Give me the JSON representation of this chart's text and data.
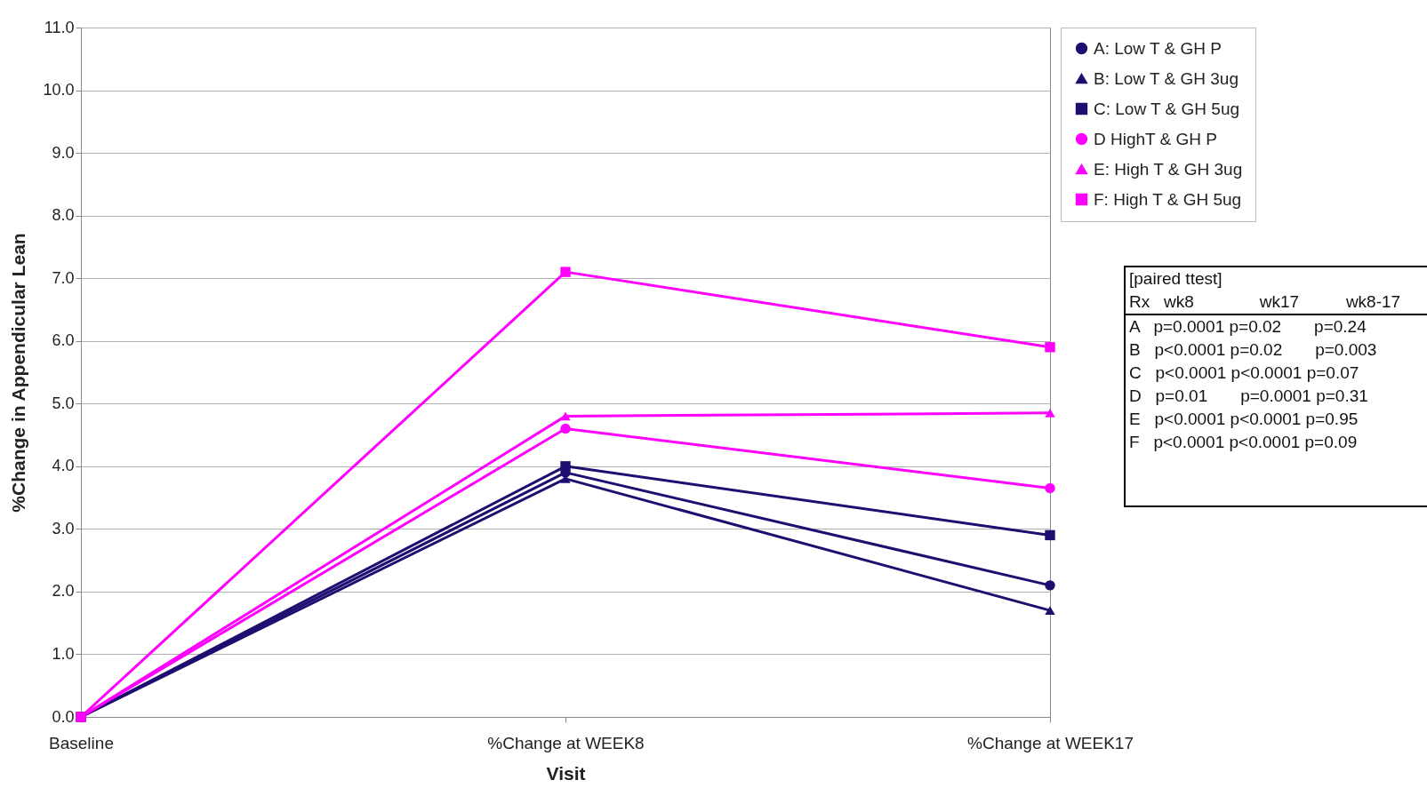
{
  "chart_data": {
    "type": "line",
    "xlabel": "Visit",
    "ylabel": "%Change in Appendicular Lean",
    "categories": [
      "Baseline",
      "%Change at WEEK8",
      "%Change at WEEK17"
    ],
    "series": [
      {
        "name": "A: Low T & GH P",
        "color": "#1c0f70",
        "marker": "circle",
        "values": [
          0,
          3.9,
          2.1
        ]
      },
      {
        "name": "B: Low T & GH 3ug",
        "color": "#1c0f70",
        "marker": "triangle",
        "values": [
          0,
          3.8,
          1.7
        ]
      },
      {
        "name": "C: Low T & GH 5ug",
        "color": "#1c0f70",
        "marker": "square",
        "values": [
          0,
          4.0,
          2.9
        ]
      },
      {
        "name": "D  HighT & GH P",
        "color": "#ff00ff",
        "marker": "circle",
        "values": [
          0,
          4.6,
          3.65
        ]
      },
      {
        "name": "E: High T & GH 3ug",
        "color": "#ff00ff",
        "marker": "triangle",
        "values": [
          0,
          4.8,
          4.85
        ]
      },
      {
        "name": "F: High T & GH 5ug",
        "color": "#ff00ff",
        "marker": "square",
        "values": [
          0,
          7.1,
          5.9
        ]
      }
    ],
    "ylim": [
      0,
      11
    ],
    "yticks": [
      {
        "value": 0,
        "label": "0.0"
      },
      {
        "value": 1,
        "label": "1.0"
      },
      {
        "value": 2,
        "label": "2.0"
      },
      {
        "value": 3,
        "label": "3.0"
      },
      {
        "value": 4,
        "label": "4.0"
      },
      {
        "value": 5,
        "label": "5.0"
      },
      {
        "value": 6,
        "label": "6.0"
      },
      {
        "value": 7,
        "label": "7.0"
      },
      {
        "value": 8,
        "label": "8.0"
      },
      {
        "value": 9,
        "label": "9.0"
      },
      {
        "value": 10,
        "label": "10.0"
      },
      {
        "value": 11,
        "label": "11.0"
      }
    ],
    "grid": "y",
    "legend": "top right",
    "line_style": "solid",
    "annotations": [
      "[paired ttest]",
      "Rx   wk8              wk17          wk8-17",
      "A   p=0.0001 p=0.02       p=0.24",
      "B   p<0.0001 p=0.02       p=0.003",
      "C   p<0.0001 p<0.0001 p=0.07",
      "D   p=0.01       p=0.0001 p=0.31",
      "E   p<0.0001 p<0.0001 p=0.95",
      "F   p<0.0001 p<0.0001 p=0.09"
    ]
  }
}
